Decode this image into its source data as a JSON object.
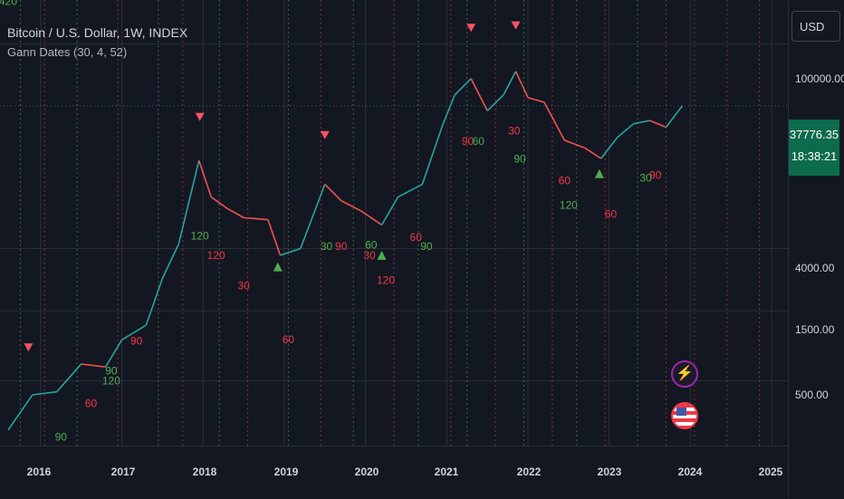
{
  "header": {
    "title": "Bitcoin / U.S. Dollar, 1W, INDEX",
    "indicator": "Gann Dates (30, 4, 52)"
  },
  "currency_button": "USD",
  "price_badge": {
    "price": "37776.35",
    "countdown": "18:38:21"
  },
  "y_ticks": [
    "100000.00",
    "4000.00",
    "1500.00",
    "500.00"
  ],
  "x_ticks": [
    "2016",
    "2017",
    "2018",
    "2019",
    "2020",
    "2021",
    "2022",
    "2023",
    "2024",
    "2025"
  ],
  "colors": {
    "up": "#26a69a",
    "down": "#ef5350",
    "bg": "#131722",
    "grid": "#2a2e39",
    "green_label": "#4caf50",
    "red_label": "#f23645"
  },
  "icons": {
    "alert": "lightning-icon",
    "region": "us-flag-icon"
  },
  "chart_data": {
    "type": "line",
    "title": "Bitcoin / U.S. Dollar, 1W, INDEX",
    "scale": "log",
    "ylim": [
      180,
      200000
    ],
    "xlim": [
      2015.5,
      2025.2
    ],
    "y_ticks": [
      100000,
      4000,
      1500,
      500
    ],
    "x_ticks": [
      2016,
      2017,
      2018,
      2019,
      2020,
      2021,
      2022,
      2023,
      2024,
      2025
    ],
    "series": [
      {
        "x": [
          2015.6,
          2015.9,
          2016.2,
          2016.5,
          2016.8,
          2017.0,
          2017.3,
          2017.5,
          2017.7,
          2017.95,
          2018.1,
          2018.3,
          2018.5,
          2018.8,
          2018.95,
          2019.2,
          2019.5,
          2019.7,
          2019.95,
          2020.2,
          2020.4,
          2020.7,
          2020.95,
          2021.1,
          2021.3,
          2021.5,
          2021.7,
          2021.85,
          2022.0,
          2022.2,
          2022.45,
          2022.7,
          2022.9,
          2023.1,
          2023.3,
          2023.5,
          2023.7,
          2023.9
        ],
        "values": [
          230,
          400,
          420,
          650,
          620,
          950,
          1200,
          2500,
          4300,
          16000,
          9000,
          7500,
          6500,
          6300,
          3600,
          4000,
          11000,
          8500,
          7200,
          5800,
          9000,
          11000,
          28000,
          45000,
          58000,
          35000,
          45000,
          65000,
          43000,
          40000,
          22000,
          19500,
          16500,
          23000,
          28500,
          30000,
          27000,
          37800
        ]
      }
    ],
    "markers": [
      {
        "type": "down",
        "x": 2015.85,
        "y": 850
      },
      {
        "type": "down",
        "x": 2017.96,
        "y": 32000
      },
      {
        "type": "down",
        "x": 2019.5,
        "y": 24000
      },
      {
        "type": "down",
        "x": 2021.3,
        "y": 130000
      },
      {
        "type": "down",
        "x": 2021.85,
        "y": 135000
      },
      {
        "type": "up",
        "x": 2018.92,
        "y": 3000
      },
      {
        "type": "up",
        "x": 2020.2,
        "y": 3600
      },
      {
        "type": "up",
        "x": 2022.88,
        "y": 13000
      }
    ],
    "annotations": [
      {
        "text": "120",
        "x": 2017.96,
        "y": 4600,
        "color": "green"
      },
      {
        "text": "120",
        "x": 2018.16,
        "y": 3400,
        "color": "red"
      },
      {
        "text": "30",
        "x": 2018.5,
        "y": 2100,
        "color": "red"
      },
      {
        "text": "60",
        "x": 2019.05,
        "y": 900,
        "color": "red"
      },
      {
        "text": "30",
        "x": 2019.52,
        "y": 3900,
        "color": "green"
      },
      {
        "text": "90",
        "x": 2019.7,
        "y": 3900,
        "color": "red"
      },
      {
        "text": "30",
        "x": 2020.05,
        "y": 3400,
        "color": "red"
      },
      {
        "text": "60",
        "x": 2020.07,
        "y": 4000,
        "color": "green"
      },
      {
        "text": "120",
        "x": 2020.25,
        "y": 2300,
        "color": "red"
      },
      {
        "text": "60",
        "x": 2020.62,
        "y": 4500,
        "color": "red"
      },
      {
        "text": "90",
        "x": 2020.75,
        "y": 3900,
        "color": "green"
      },
      {
        "text": "90",
        "x": 2021.26,
        "y": 20500,
        "color": "red"
      },
      {
        "text": "60",
        "x": 2021.39,
        "y": 20500,
        "color": "green"
      },
      {
        "text": "30",
        "x": 2021.83,
        "y": 24000,
        "color": "red"
      },
      {
        "text": "90",
        "x": 2021.9,
        "y": 15500,
        "color": "green"
      },
      {
        "text": "60",
        "x": 2022.45,
        "y": 11000,
        "color": "red"
      },
      {
        "text": "120",
        "x": 2022.5,
        "y": 7500,
        "color": "green"
      },
      {
        "text": "60",
        "x": 2023.02,
        "y": 6500,
        "color": "red"
      },
      {
        "text": "30",
        "x": 2023.45,
        "y": 11500,
        "color": "green"
      },
      {
        "text": "90",
        "x": 2023.57,
        "y": 12000,
        "color": "red"
      },
      {
        "text": "90",
        "x": 2016.87,
        "y": 550,
        "color": "green"
      },
      {
        "text": "120",
        "x": 2016.87,
        "y": 470,
        "color": "green"
      },
      {
        "text": "60",
        "x": 2016.62,
        "y": 330,
        "color": "red"
      },
      {
        "text": "90",
        "x": 2017.18,
        "y": 880,
        "color": "red"
      },
      {
        "text": "90",
        "x": 2016.25,
        "y": 195,
        "color": "green"
      },
      {
        "text": "420",
        "x": 2015.6,
        "y": 185000,
        "color": "green"
      }
    ],
    "vertical_lines": [
      {
        "x": 2015.75,
        "color": "green"
      },
      {
        "x": 2016.05,
        "color": "red"
      },
      {
        "x": 2016.45,
        "color": "green"
      },
      {
        "x": 2016.95,
        "color": "red"
      },
      {
        "x": 2017.45,
        "color": "green"
      },
      {
        "x": 2017.75,
        "color": "red"
      },
      {
        "x": 2018.2,
        "color": "green"
      },
      {
        "x": 2018.55,
        "color": "red"
      },
      {
        "x": 2019.05,
        "color": "green"
      },
      {
        "x": 2019.45,
        "color": "red"
      },
      {
        "x": 2019.85,
        "color": "green"
      },
      {
        "x": 2020.35,
        "color": "red"
      },
      {
        "x": 2020.65,
        "color": "green"
      },
      {
        "x": 2021.05,
        "color": "red"
      },
      {
        "x": 2021.25,
        "color": "green"
      },
      {
        "x": 2021.6,
        "color": "red"
      },
      {
        "x": 2021.95,
        "color": "green"
      },
      {
        "x": 2022.3,
        "color": "red"
      },
      {
        "x": 2022.6,
        "color": "green"
      },
      {
        "x": 2022.95,
        "color": "red"
      },
      {
        "x": 2023.35,
        "color": "green"
      },
      {
        "x": 2023.7,
        "color": "red"
      },
      {
        "x": 2024.05,
        "color": "red"
      },
      {
        "x": 2024.45,
        "color": "red"
      },
      {
        "x": 2024.85,
        "color": "red"
      }
    ]
  }
}
